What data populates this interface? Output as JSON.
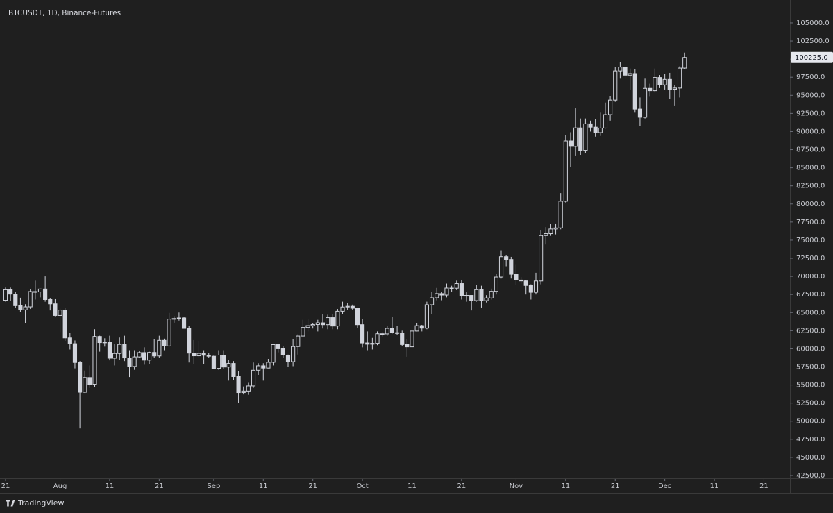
{
  "chart_data": {
    "type": "candlestick",
    "title": "BTCUSDT, 1D, Binance-Futures",
    "open": [
      66700,
      68150,
      67550,
      65950,
      65380,
      65790,
      67900,
      67850,
      68250,
      66800,
      66200,
      64600,
      65350,
      61500,
      60700,
      58100,
      54000,
      56030,
      55100,
      61700,
      60850,
      60920,
      58700,
      59350,
      60600,
      58740,
      57560,
      58880,
      59470,
      58430,
      59490,
      59010,
      61160,
      60390,
      64100,
      64180,
      64260,
      62820,
      59400,
      59030,
      59360,
      59110,
      58970,
      57300,
      59130,
      57480,
      57970,
      56160,
      53950,
      54160,
      54870,
      57040,
      57650,
      57340,
      58130,
      60570,
      60000,
      59130,
      58210,
      60310,
      61760,
      62950,
      63200,
      63350,
      63580,
      63330,
      64300,
      63140,
      65180,
      65770,
      65870,
      65600,
      63330,
      60800,
      60630,
      60750,
      62080,
      62060,
      62820,
      62220,
      62130,
      60580,
      60270,
      62450,
      63190,
      62850,
      66080,
      67040,
      67620,
      67420,
      68380,
      68360,
      69000,
      67370,
      67370,
      66650,
      68160,
      66640,
      67010,
      67930,
      69910,
      72720,
      72340,
      70290,
      69490,
      69370,
      68740,
      67800,
      69360,
      75640,
      75900,
      76540,
      76690,
      80370,
      88700,
      87950,
      90500,
      87400,
      91060,
      90600,
      89850,
      90480,
      92340,
      94340,
      98370,
      98900,
      97780,
      98000,
      93100,
      91970,
      95960,
      95640,
      97460,
      96440,
      97200,
      95840,
      96000,
      98760
    ],
    "high": [
      68450,
      68450,
      67800,
      67050,
      66150,
      68200,
      69400,
      68300,
      70000,
      66950,
      66850,
      65550,
      65600,
      62200,
      61150,
      58300,
      57000,
      57700,
      62700,
      61800,
      61450,
      61800,
      60700,
      61550,
      61800,
      59800,
      59800,
      59700,
      60200,
      59600,
      61350,
      61800,
      61400,
      64950,
      64500,
      65000,
      64450,
      63200,
      61200,
      61100,
      59800,
      59400,
      59050,
      59800,
      59800,
      58500,
      58300,
      56900,
      54800,
      55300,
      58100,
      58000,
      58000,
      58600,
      60650,
      60600,
      60400,
      59200,
      61300,
      62000,
      64000,
      64100,
      63500,
      64000,
      64800,
      64700,
      64800,
      65500,
      66500,
      66300,
      66100,
      65700,
      64100,
      62400,
      61500,
      62400,
      62300,
      63100,
      64400,
      63200,
      62500,
      61300,
      63400,
      63500,
      63300,
      66500,
      67900,
      68400,
      67900,
      69000,
      68700,
      69400,
      69500,
      67800,
      67400,
      68800,
      68700,
      67400,
      68300,
      70300,
      73600,
      72900,
      72700,
      71600,
      69900,
      69500,
      68900,
      70500,
      76400,
      76800,
      77200,
      77300,
      81500,
      89500,
      89900,
      93200,
      91800,
      91800,
      91500,
      91700,
      92600,
      94000,
      94900,
      98900,
      99600,
      99000,
      98700,
      98600,
      94700,
      97300,
      96600,
      98700,
      97800,
      98000,
      98100,
      96400,
      99000,
      100900
    ],
    "low": [
      66500,
      66650,
      65700,
      65100,
      63500,
      65500,
      66800,
      67100,
      66500,
      65300,
      64500,
      62300,
      61100,
      59900,
      57300,
      49000,
      53900,
      54600,
      54700,
      59600,
      60300,
      58400,
      57700,
      58500,
      58300,
      56100,
      57100,
      58800,
      57800,
      57850,
      58700,
      58800,
      59800,
      60300,
      63600,
      63900,
      62800,
      58100,
      57900,
      58800,
      57900,
      58700,
      57200,
      57100,
      57200,
      55600,
      55700,
      52550,
      53700,
      53650,
      54600,
      56400,
      55600,
      57300,
      57700,
      59500,
      58700,
      57500,
      57600,
      59200,
      61700,
      62400,
      62800,
      62400,
      62800,
      62700,
      62700,
      62700,
      64800,
      65400,
      65400,
      62900,
      60200,
      59800,
      59900,
      60500,
      61700,
      61800,
      62100,
      61900,
      60400,
      58900,
      60100,
      62400,
      62400,
      62700,
      64800,
      66700,
      66700,
      67100,
      67900,
      68100,
      66800,
      66500,
      65300,
      66500,
      65700,
      66400,
      66800,
      67500,
      69700,
      71400,
      69700,
      68800,
      69000,
      67500,
      66800,
      67500,
      68900,
      74400,
      75600,
      75800,
      76500,
      80200,
      85100,
      86600,
      86700,
      87000,
      90000,
      89300,
      89400,
      90400,
      91500,
      94100,
      97300,
      97200,
      95800,
      92600,
      90800,
      91800,
      94800,
      95400,
      96000,
      95800,
      94500,
      93600,
      94700,
      98600
    ],
    "close": [
      68150,
      67550,
      65950,
      65380,
      65790,
      67900,
      67850,
      68250,
      66800,
      66200,
      64600,
      65350,
      61500,
      60700,
      58100,
      54000,
      56030,
      55100,
      61700,
      60850,
      60920,
      58700,
      59350,
      60600,
      58740,
      57560,
      58880,
      59470,
      58430,
      59490,
      59010,
      61160,
      60390,
      64100,
      64180,
      64260,
      62820,
      59400,
      59030,
      59360,
      59110,
      58970,
      57300,
      59130,
      57480,
      57970,
      56160,
      53950,
      54160,
      54870,
      57040,
      57650,
      57340,
      58130,
      60570,
      60000,
      59130,
      58210,
      60310,
      61760,
      62950,
      63200,
      63350,
      63580,
      63330,
      64300,
      63140,
      65180,
      65770,
      65870,
      65600,
      63330,
      60800,
      60630,
      60750,
      62080,
      62060,
      62820,
      62220,
      62130,
      60580,
      60270,
      62450,
      63190,
      62850,
      66080,
      67040,
      67620,
      67420,
      68380,
      68360,
      69000,
      67370,
      67370,
      66650,
      68160,
      66640,
      67010,
      67930,
      69910,
      72720,
      72340,
      70290,
      69490,
      69370,
      68740,
      67800,
      69360,
      75640,
      75900,
      76540,
      76690,
      80370,
      88700,
      87950,
      90500,
      87400,
      91060,
      90600,
      89850,
      90480,
      92340,
      94340,
      98370,
      98900,
      97780,
      98000,
      93100,
      91970,
      95960,
      95640,
      97460,
      96440,
      97200,
      95840,
      96000,
      98760,
      100225
    ],
    "up_color": "#d1d4dc",
    "down_color": "#d1d4dc",
    "up_fill": "#1f1f1f",
    "xlim": [
      -1.12,
      158.12
    ],
    "xticks": [
      {
        "value": 0,
        "label": "21"
      },
      {
        "value": 11,
        "label": "Aug"
      },
      {
        "value": 21,
        "label": "11"
      },
      {
        "value": 31,
        "label": "21"
      },
      {
        "value": 42,
        "label": "Sep"
      },
      {
        "value": 52,
        "label": "11"
      },
      {
        "value": 62,
        "label": "21"
      },
      {
        "value": 72,
        "label": "Oct"
      },
      {
        "value": 82,
        "label": "11"
      },
      {
        "value": 92,
        "label": "21"
      },
      {
        "value": 103,
        "label": "Nov"
      },
      {
        "value": 113,
        "label": "11"
      },
      {
        "value": 123,
        "label": "21"
      },
      {
        "value": 133,
        "label": "Dec"
      },
      {
        "value": 143,
        "label": "11"
      },
      {
        "value": 153,
        "label": "21"
      }
    ],
    "ylim": [
      42020,
      108160
    ],
    "yticks": [
      {
        "value": 42500,
        "label": "42500.0"
      },
      {
        "value": 45000,
        "label": "45000.0"
      },
      {
        "value": 47500,
        "label": "47500.0"
      },
      {
        "value": 50000,
        "label": "50000.0"
      },
      {
        "value": 52500,
        "label": "52500.0"
      },
      {
        "value": 55000,
        "label": "55000.0"
      },
      {
        "value": 57500,
        "label": "57500.0"
      },
      {
        "value": 60000,
        "label": "60000.0"
      },
      {
        "value": 62500,
        "label": "62500.0"
      },
      {
        "value": 65000,
        "label": "65000.0"
      },
      {
        "value": 67500,
        "label": "67500.0"
      },
      {
        "value": 70000,
        "label": "70000.0"
      },
      {
        "value": 72500,
        "label": "72500.0"
      },
      {
        "value": 75000,
        "label": "75000.0"
      },
      {
        "value": 77500,
        "label": "77500.0"
      },
      {
        "value": 80000,
        "label": "80000.0"
      },
      {
        "value": 82500,
        "label": "82500.0"
      },
      {
        "value": 85000,
        "label": "85000.0"
      },
      {
        "value": 87500,
        "label": "87500.0"
      },
      {
        "value": 90000,
        "label": "90000.0"
      },
      {
        "value": 92500,
        "label": "92500.0"
      },
      {
        "value": 95000,
        "label": "95000.0"
      },
      {
        "value": 97500,
        "label": "97500.0"
      },
      {
        "value": 100000,
        "label": "100000.0"
      },
      {
        "value": 102500,
        "label": "102500.0"
      },
      {
        "value": 105000,
        "label": "105000.0"
      }
    ],
    "last_price": {
      "value": 100225,
      "label": "100225.0"
    },
    "grid": false
  },
  "footer": {
    "brand": "TradingView"
  }
}
